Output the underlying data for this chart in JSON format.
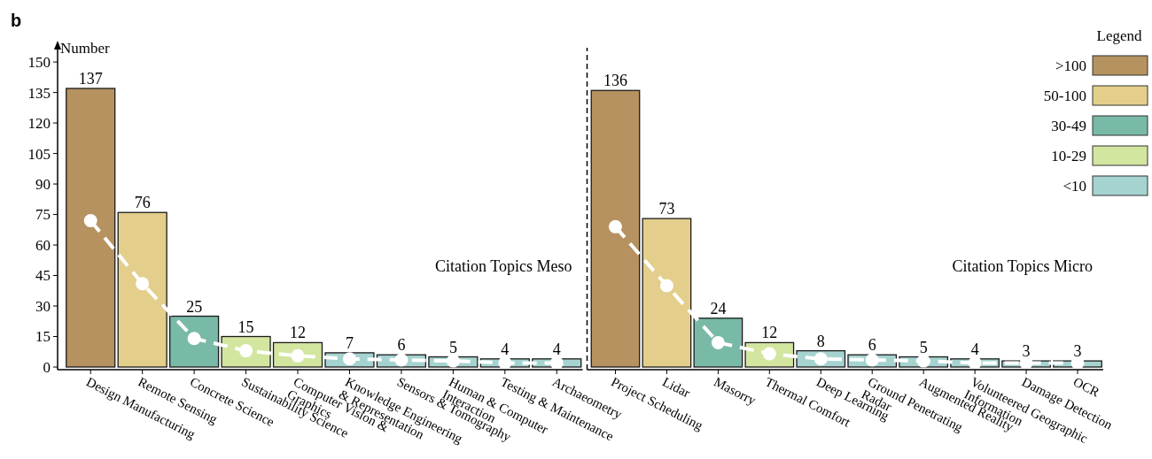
{
  "chart_data": [
    {
      "type": "bar",
      "title": "b",
      "ylabel": "Number",
      "legend": false,
      "ylim": [
        0,
        157
      ],
      "yticks": [
        0,
        15,
        30,
        45,
        60,
        75,
        90,
        105,
        120,
        135,
        150
      ],
      "categories": [
        "Design Manufacturing",
        "Remote Sensing",
        "Concrete Science",
        "Sustainability Science",
        "Computer Vision & Graphics",
        "Knowledge Engineering & Representation",
        "Sensors & Tomography",
        "Human & Computer Interaction",
        "Testing & Maintenance",
        "Archaeometry"
      ],
      "annotations": [
        "Citation Topics Meso"
      ],
      "series": [
        {
          "color": "#b5925f",
          "values": [
            137,
            null,
            null,
            null,
            null,
            null,
            null,
            null,
            null,
            null
          ],
          "value_labels": [
            "137",
            null,
            null,
            null,
            null,
            null,
            null,
            null,
            null,
            null
          ]
        },
        {
          "color": "#e3cf8b",
          "values": [
            null,
            76,
            null,
            null,
            null,
            null,
            null,
            null,
            null,
            null
          ],
          "value_labels": [
            null,
            "76",
            null,
            null,
            null,
            null,
            null,
            null,
            null,
            null
          ]
        },
        {
          "color": "#79b9a7",
          "values": [
            null,
            null,
            25,
            null,
            null,
            null,
            null,
            null,
            null,
            null
          ],
          "value_labels": [
            null,
            null,
            "25",
            null,
            null,
            null,
            null,
            null,
            null,
            null
          ]
        },
        {
          "color": "#d3e6a0",
          "values": [
            null,
            null,
            null,
            15,
            12,
            null,
            null,
            null,
            null,
            null
          ],
          "value_labels": [
            null,
            null,
            null,
            "15",
            "12",
            null,
            null,
            null,
            null,
            null
          ]
        },
        {
          "color": "#a5d3d0",
          "values": [
            null,
            null,
            null,
            null,
            null,
            7,
            6,
            5,
            4,
            4
          ],
          "value_labels": [
            null,
            null,
            null,
            null,
            null,
            "7",
            "6",
            "5",
            "4",
            "4"
          ]
        },
        {
          "type": "line",
          "color": "#ffffff",
          "marker": "circle",
          "line_style": "dashed",
          "values": [
            72,
            41,
            14,
            8,
            5.5,
            4,
            3.5,
            3,
            2,
            2
          ]
        }
      ]
    },
    {
      "type": "bar",
      "legend": "top right",
      "legend_title": "Legend",
      "tick_labels": "x",
      "ylim": [
        0,
        157
      ],
      "categories": [
        "Project Scheduling",
        "Lidar",
        "Masorry",
        "Thermal Comfort",
        "Deep Learning",
        "Ground Penetrating Radar",
        "Augmented Reality",
        "Volunteered Geographic Information",
        "Damage Detection",
        "OCR"
      ],
      "annotations": [
        "Citation Topics Micro"
      ],
      "series": [
        {
          "name": ">100",
          "color": "#b5925f",
          "values": [
            136,
            null,
            null,
            null,
            null,
            null,
            null,
            null,
            null,
            null
          ],
          "value_labels": [
            "136",
            null,
            null,
            null,
            null,
            null,
            null,
            null,
            null,
            null
          ]
        },
        {
          "name": "50-100",
          "color": "#e3cf8b",
          "values": [
            null,
            73,
            null,
            null,
            null,
            null,
            null,
            null,
            null,
            null
          ],
          "value_labels": [
            null,
            "73",
            null,
            null,
            null,
            null,
            null,
            null,
            null,
            null
          ]
        },
        {
          "name": "30-49",
          "color": "#79b9a7",
          "values": [
            null,
            null,
            24,
            null,
            null,
            null,
            null,
            null,
            null,
            null
          ],
          "value_labels": [
            null,
            null,
            "24",
            null,
            null,
            null,
            null,
            null,
            null,
            null
          ]
        },
        {
          "name": "10-29",
          "color": "#d3e6a0",
          "values": [
            null,
            null,
            null,
            12,
            null,
            null,
            null,
            null,
            null,
            null
          ],
          "value_labels": [
            null,
            null,
            null,
            "12",
            null,
            null,
            null,
            null,
            null,
            null
          ]
        },
        {
          "name": "<10",
          "color": "#a5d3d0",
          "values": [
            null,
            null,
            null,
            null,
            8,
            6,
            5,
            4,
            3,
            3
          ],
          "value_labels": [
            null,
            null,
            null,
            null,
            "8",
            "6",
            "5",
            "4",
            "3",
            "3"
          ]
        },
        {
          "type": "line",
          "color": "#ffffff",
          "marker": "circle",
          "line_style": "dashed",
          "values": [
            69,
            40,
            12,
            6.5,
            4,
            3.5,
            3,
            2,
            2,
            2
          ]
        }
      ]
    }
  ]
}
